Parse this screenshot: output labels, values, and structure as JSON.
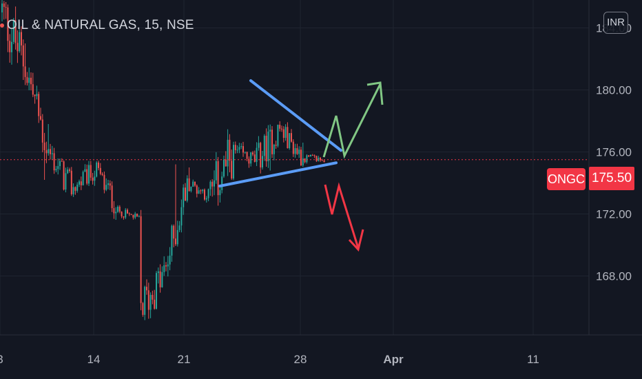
{
  "header": {
    "title": "OIL & NATURAL GAS, 15, NSE",
    "currency_button": "INR"
  },
  "price_tag": {
    "symbol": "ONGC",
    "value": "175.50"
  },
  "colors": {
    "background": "#131722",
    "up": "#26a69a",
    "down": "#ef5350",
    "trend_lines": "#5b9cf6",
    "bull_arrow": "#81c784",
    "bear_arrow": "#f23645",
    "grid": "#1f2430"
  },
  "chart_data": {
    "type": "candlestick",
    "y_tick_labels": [
      "184.00",
      "180.00",
      "176.00",
      "172.00",
      "168.00"
    ],
    "y_ticks": [
      184,
      180,
      176,
      172,
      168
    ],
    "ylim": [
      164.2,
      185.8
    ],
    "x_tick_labels": [
      "3",
      "14",
      "21",
      "28",
      "Apr",
      "11"
    ],
    "current_price": 175.5,
    "grid": true,
    "segments": [
      {
        "start": 185.0,
        "end": 181.6,
        "low": 176.0,
        "high": 186.5
      },
      {
        "start": 181.6,
        "end": 176.0,
        "low": 174.2,
        "high": 183.0
      },
      {
        "start": 176.0,
        "end": 173.6,
        "low": 172.0,
        "high": 177.8
      },
      {
        "start": 173.6,
        "end": 174.8,
        "low": 172.4,
        "high": 176.2
      },
      {
        "start": 174.8,
        "end": 172.5,
        "low": 171.2,
        "high": 176.4
      },
      {
        "start": 172.2,
        "end": 171.6,
        "low": 171.0,
        "high": 172.6
      },
      {
        "start": 166.0,
        "end": 168.0,
        "low": 164.5,
        "high": 172.5
      },
      {
        "start": 168.0,
        "end": 174.0,
        "low": 167.6,
        "high": 175.2
      },
      {
        "start": 174.0,
        "end": 173.2,
        "low": 172.2,
        "high": 175.0
      },
      {
        "start": 173.2,
        "end": 176.0,
        "low": 172.8,
        "high": 181.4
      },
      {
        "start": 176.0,
        "end": 175.4,
        "low": 174.6,
        "high": 178.0
      },
      {
        "start": 175.5,
        "end": 177.5,
        "low": 174.8,
        "high": 180.4
      },
      {
        "start": 177.5,
        "end": 175.6,
        "low": 174.6,
        "high": 178.4
      },
      {
        "start": 175.6,
        "end": 175.5,
        "low": 175.0,
        "high": 176.6
      }
    ],
    "trend_lines": [
      {
        "x": [
          "Mar 25",
          "Mar 30"
        ],
        "y": [
          180.6,
          176.1
        ]
      },
      {
        "x": [
          "Mar 22",
          "Mar 30"
        ],
        "y": [
          173.8,
          175.3
        ]
      }
    ],
    "arrows": [
      {
        "direction": "up",
        "color": "bull"
      },
      {
        "direction": "down",
        "color": "bear"
      }
    ]
  }
}
